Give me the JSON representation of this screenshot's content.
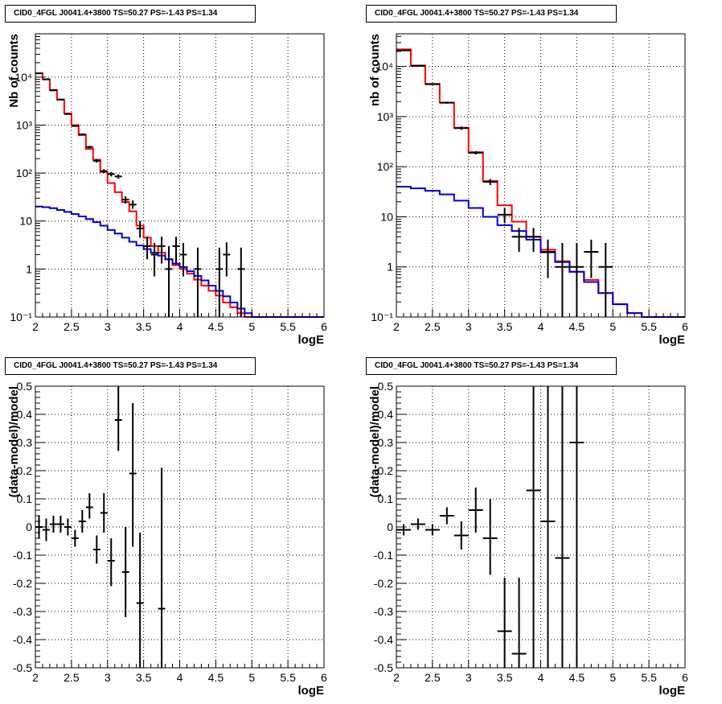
{
  "panel_title": "CID0_4FGL J0041.4+3800 TS=50.27 PS=-1.43 PS=1.34",
  "colors": {
    "model_total": "#ff0000",
    "model_source": "#0000cc",
    "data": "#000000"
  },
  "chart_data": [
    {
      "id": "counts-fine",
      "type": "line",
      "title": "CID0_4FGL J0041.4+3800 TS=50.27 PS=-1.43 PS=1.34",
      "xlabel": "logE",
      "ylabel": "Nb of counts",
      "xlim": [
        2,
        6
      ],
      "ylim": [
        0.1,
        80000
      ],
      "yscale": "log",
      "grid": true,
      "xticks": [
        "2",
        "2.5",
        "3",
        "3.5",
        "4",
        "4.5",
        "5",
        "5.5",
        "6"
      ],
      "yticks": [
        "10⁻¹",
        "1",
        "10",
        "10²",
        "10³",
        "10⁴"
      ],
      "series": [
        {
          "kind": "step",
          "color": "#ff0000",
          "edges": [
            2.0,
            2.1,
            2.2,
            2.3,
            2.4,
            2.5,
            2.6,
            2.7,
            2.8,
            2.9,
            3.0,
            3.1,
            3.2,
            3.3,
            3.4,
            3.5,
            3.6,
            3.7,
            3.8,
            3.9,
            4.0,
            4.1,
            4.2,
            4.3,
            4.4,
            4.5,
            4.6,
            4.7,
            4.8,
            4.9,
            5.0,
            5.1,
            5.2,
            5.3,
            5.4,
            5.5,
            5.6,
            5.7,
            5.8,
            5.9,
            6.0
          ],
          "values": [
            12000,
            9000,
            5400,
            3400,
            1750,
            1000,
            620,
            320,
            190,
            105,
            62,
            40,
            25,
            16,
            8,
            4.5,
            3.0,
            2.2,
            1.6,
            1.2,
            1.0,
            0.8,
            0.6,
            0.45,
            0.35,
            0.28,
            0.2,
            0.16,
            0.12,
            0.1,
            0.1,
            0.1,
            0.1,
            0.1,
            0.1,
            0.1,
            0.1,
            0.1,
            0.1,
            0.1
          ]
        },
        {
          "kind": "step",
          "color": "#0000cc",
          "edges": [
            2.0,
            2.1,
            2.2,
            2.3,
            2.4,
            2.5,
            2.6,
            2.7,
            2.8,
            2.9,
            3.0,
            3.1,
            3.2,
            3.3,
            3.4,
            3.5,
            3.6,
            3.7,
            3.8,
            3.9,
            4.0,
            4.1,
            4.2,
            4.3,
            4.4,
            4.5,
            4.6,
            4.7,
            4.8,
            4.9,
            5.0,
            5.1,
            5.2,
            5.3,
            5.4,
            5.5,
            5.6,
            5.7,
            5.8,
            5.9,
            6.0
          ],
          "values": [
            20,
            19.5,
            18.5,
            17,
            15.5,
            14,
            12.5,
            11,
            9.5,
            8,
            6.5,
            5.5,
            4.5,
            3.7,
            3.1,
            2.6,
            2.2,
            1.9,
            1.6,
            1.3,
            1.1,
            0.9,
            0.72,
            0.58,
            0.45,
            0.35,
            0.27,
            0.2,
            0.15,
            0.12,
            0.1,
            0.1,
            0.1,
            0.1,
            0.1,
            0.1,
            0.1,
            0.1,
            0.1,
            0.1
          ]
        },
        {
          "kind": "points",
          "color": "#000000",
          "points": [
            {
              "x": 2.05,
              "y": 12000,
              "lo": 11800,
              "hi": 12200
            },
            {
              "x": 2.15,
              "y": 9000,
              "lo": 8800,
              "hi": 9200
            },
            {
              "x": 2.25,
              "y": 5300,
              "lo": 5150,
              "hi": 5450
            },
            {
              "x": 2.35,
              "y": 3400,
              "lo": 3300,
              "hi": 3500
            },
            {
              "x": 2.45,
              "y": 1700,
              "lo": 1650,
              "hi": 1750
            },
            {
              "x": 2.55,
              "y": 960,
              "lo": 920,
              "hi": 1000
            },
            {
              "x": 2.65,
              "y": 640,
              "lo": 610,
              "hi": 670
            },
            {
              "x": 2.75,
              "y": 350,
              "lo": 330,
              "hi": 370
            },
            {
              "x": 2.85,
              "y": 180,
              "lo": 165,
              "hi": 195
            },
            {
              "x": 2.95,
              "y": 110,
              "lo": 100,
              "hi": 120
            },
            {
              "x": 3.05,
              "y": 95,
              "lo": 85,
              "hi": 105
            },
            {
              "x": 3.15,
              "y": 85,
              "lo": 76,
              "hi": 94
            },
            {
              "x": 3.25,
              "y": 28,
              "lo": 23,
              "hi": 33
            },
            {
              "x": 3.35,
              "y": 22,
              "lo": 18,
              "hi": 27
            },
            {
              "x": 3.45,
              "y": 7,
              "lo": 4.5,
              "hi": 10
            },
            {
              "x": 3.55,
              "y": 3,
              "lo": 1.6,
              "hi": 4.8
            },
            {
              "x": 3.65,
              "y": 2,
              "lo": 0.7,
              "hi": 3.5
            },
            {
              "x": 3.75,
              "y": 3,
              "lo": 1.3,
              "hi": 4.7
            },
            {
              "x": 3.85,
              "y": 1,
              "lo": 0.1,
              "hi": 3.0
            },
            {
              "x": 3.95,
              "y": 3,
              "lo": 1.3,
              "hi": 4.7
            },
            {
              "x": 4.05,
              "y": 2,
              "lo": 0.7,
              "hi": 3.5
            },
            {
              "x": 4.25,
              "y": 1,
              "lo": 0.1,
              "hi": 2.8
            },
            {
              "x": 4.55,
              "y": 1,
              "lo": 0.1,
              "hi": 2.8
            },
            {
              "x": 4.65,
              "y": 2,
              "lo": 0.7,
              "hi": 3.6
            },
            {
              "x": 4.85,
              "y": 1,
              "lo": 0.1,
              "hi": 2.8
            }
          ]
        }
      ]
    },
    {
      "id": "counts-coarse",
      "type": "line",
      "title": "CID0_4FGL J0041.4+3800 TS=50.27 PS=-1.43 PS=1.34",
      "xlabel": "logE",
      "ylabel": "nb of counts",
      "xlim": [
        2,
        6
      ],
      "ylim": [
        0.1,
        45000
      ],
      "yscale": "log",
      "grid": true,
      "xticks": [
        "2",
        "2.5",
        "3",
        "3.5",
        "4",
        "4.5",
        "5",
        "5.5",
        "6"
      ],
      "yticks": [
        "10⁻¹",
        "1",
        "10",
        "10²",
        "10³",
        "10⁴"
      ],
      "series": [
        {
          "kind": "step",
          "color": "#ff0000",
          "edges": [
            2.0,
            2.2,
            2.4,
            2.6,
            2.8,
            3.0,
            3.2,
            3.4,
            3.6,
            3.8,
            4.0,
            4.2,
            4.4,
            4.6,
            4.8,
            5.0,
            5.2,
            5.4,
            5.6,
            5.8,
            6.0
          ],
          "values": [
            22000,
            10500,
            4500,
            1900,
            600,
            195,
            52,
            17,
            8,
            4,
            2.2,
            1.3,
            0.8,
            0.55,
            0.3,
            0.18,
            0.12,
            0.1,
            0.1,
            0.1
          ]
        },
        {
          "kind": "step",
          "color": "#0000cc",
          "edges": [
            2.0,
            2.2,
            2.4,
            2.6,
            2.8,
            3.0,
            3.2,
            3.4,
            3.6,
            3.8,
            4.0,
            4.2,
            4.4,
            4.6,
            4.8,
            5.0,
            5.2,
            5.4,
            5.6,
            5.8,
            6.0
          ],
          "values": [
            40,
            37,
            33,
            28,
            21,
            15,
            10,
            6.8,
            5.2,
            3.5,
            1.95,
            1.25,
            0.8,
            0.5,
            0.3,
            0.18,
            0.12,
            0.1,
            0.1,
            0.1
          ]
        },
        {
          "kind": "points",
          "color": "#000000",
          "points": [
            {
              "x": 2.1,
              "y": 21000,
              "lo": 20600,
              "hi": 21400
            },
            {
              "x": 2.3,
              "y": 10300,
              "lo": 10050,
              "hi": 10550
            },
            {
              "x": 2.5,
              "y": 4450,
              "lo": 4300,
              "hi": 4600
            },
            {
              "x": 2.7,
              "y": 1900,
              "lo": 1810,
              "hi": 1990
            },
            {
              "x": 2.9,
              "y": 590,
              "lo": 545,
              "hi": 635
            },
            {
              "x": 3.1,
              "y": 190,
              "lo": 175,
              "hi": 205
            },
            {
              "x": 3.3,
              "y": 50,
              "lo": 43,
              "hi": 57
            },
            {
              "x": 3.5,
              "y": 11,
              "lo": 7.5,
              "hi": 15
            },
            {
              "x": 3.7,
              "y": 4,
              "lo": 2.0,
              "hi": 6.0
            },
            {
              "x": 3.9,
              "y": 4,
              "lo": 2.0,
              "hi": 6.0
            },
            {
              "x": 4.1,
              "y": 2,
              "lo": 0.6,
              "hi": 3.5
            },
            {
              "x": 4.3,
              "y": 1,
              "lo": 0.1,
              "hi": 3.0
            },
            {
              "x": 4.5,
              "y": 1,
              "lo": 0.1,
              "hi": 3.0
            },
            {
              "x": 4.7,
              "y": 2,
              "lo": 0.6,
              "hi": 3.5
            },
            {
              "x": 4.9,
              "y": 1,
              "lo": 0.1,
              "hi": 3.0
            }
          ]
        }
      ]
    },
    {
      "id": "residual-fine",
      "type": "scatter",
      "title": "CID0_4FGL J0041.4+3800 TS=50.27 PS=-1.43 PS=1.34",
      "xlabel": "logE",
      "ylabel": "(data-model)/model",
      "xlim": [
        2,
        6
      ],
      "ylim": [
        -0.5,
        0.5
      ],
      "grid": true,
      "xticks": [
        "2",
        "2.5",
        "3",
        "3.5",
        "4",
        "4.5",
        "5",
        "5.5",
        "6"
      ],
      "yticks": [
        "-0.5",
        "-0.4",
        "-0.3",
        "-0.2",
        "-0.1",
        "0",
        "0.1",
        "0.2",
        "0.3",
        "0.4",
        "0.5"
      ],
      "series": [
        {
          "kind": "points",
          "color": "#000000",
          "points": [
            {
              "x": 2.05,
              "y": 0.0,
              "lo": -0.04,
              "hi": 0.04
            },
            {
              "x": 2.15,
              "y": -0.01,
              "lo": -0.05,
              "hi": 0.03
            },
            {
              "x": 2.25,
              "y": 0.01,
              "lo": -0.02,
              "hi": 0.04
            },
            {
              "x": 2.35,
              "y": 0.01,
              "lo": -0.02,
              "hi": 0.04
            },
            {
              "x": 2.45,
              "y": 0.0,
              "lo": -0.03,
              "hi": 0.03
            },
            {
              "x": 2.55,
              "y": -0.04,
              "lo": -0.07,
              "hi": -0.01
            },
            {
              "x": 2.65,
              "y": 0.02,
              "lo": -0.02,
              "hi": 0.06
            },
            {
              "x": 2.75,
              "y": 0.07,
              "lo": 0.03,
              "hi": 0.12
            },
            {
              "x": 2.85,
              "y": -0.08,
              "lo": -0.13,
              "hi": -0.03
            },
            {
              "x": 2.95,
              "y": 0.05,
              "lo": -0.02,
              "hi": 0.12
            },
            {
              "x": 3.05,
              "y": -0.12,
              "lo": -0.21,
              "hi": -0.04
            },
            {
              "x": 3.15,
              "y": 0.38,
              "lo": 0.27,
              "hi": 0.5
            },
            {
              "x": 3.25,
              "y": -0.16,
              "lo": -0.32,
              "hi": 0.0
            },
            {
              "x": 3.35,
              "y": 0.19,
              "lo": -0.07,
              "hi": 0.44
            },
            {
              "x": 3.45,
              "y": -0.27,
              "lo": -0.5,
              "hi": -0.02
            },
            {
              "x": 3.75,
              "y": -0.29,
              "lo": -0.5,
              "hi": 0.21
            }
          ]
        }
      ]
    },
    {
      "id": "residual-coarse",
      "type": "scatter",
      "title": "CID0_4FGL J0041.4+3800 TS=50.27 PS=-1.43 PS=1.34",
      "xlabel": "logE",
      "ylabel": "(data-model)/model",
      "xlim": [
        2,
        6
      ],
      "ylim": [
        -0.5,
        0.5
      ],
      "grid": true,
      "xticks": [
        "2",
        "2.5",
        "3",
        "3.5",
        "4",
        "4.5",
        "5",
        "5.5",
        "6"
      ],
      "yticks": [
        "-0.5",
        "-0.4",
        "-0.3",
        "-0.2",
        "-0.1",
        "0",
        "0.1",
        "0.2",
        "0.3",
        "0.4",
        "0.5"
      ],
      "series": [
        {
          "kind": "points",
          "color": "#000000",
          "points": [
            {
              "x": 2.1,
              "y": -0.01,
              "lo": -0.03,
              "hi": 0.01
            },
            {
              "x": 2.3,
              "y": 0.01,
              "lo": -0.01,
              "hi": 0.03
            },
            {
              "x": 2.5,
              "y": -0.01,
              "lo": -0.03,
              "hi": 0.01
            },
            {
              "x": 2.7,
              "y": 0.04,
              "lo": 0.01,
              "hi": 0.07
            },
            {
              "x": 2.9,
              "y": -0.03,
              "lo": -0.08,
              "hi": 0.02
            },
            {
              "x": 3.1,
              "y": 0.06,
              "lo": -0.02,
              "hi": 0.14
            },
            {
              "x": 3.3,
              "y": -0.04,
              "lo": -0.17,
              "hi": 0.1
            },
            {
              "x": 3.5,
              "y": -0.37,
              "lo": -0.5,
              "hi": -0.18
            },
            {
              "x": 3.7,
              "y": -0.45,
              "lo": -0.5,
              "hi": -0.18
            },
            {
              "x": 3.9,
              "y": 0.13,
              "lo": -0.5,
              "hi": 0.5
            },
            {
              "x": 4.1,
              "y": 0.02,
              "lo": -0.5,
              "hi": 0.5
            },
            {
              "x": 4.3,
              "y": -0.11,
              "lo": -0.5,
              "hi": 0.5
            },
            {
              "x": 4.5,
              "y": 0.3,
              "lo": -0.5,
              "hi": 0.5
            }
          ]
        }
      ]
    }
  ]
}
